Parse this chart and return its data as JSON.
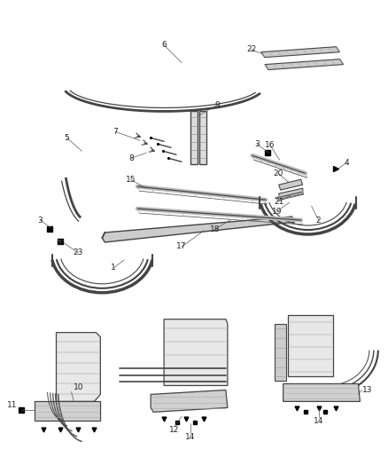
{
  "bg_color": "#ffffff",
  "line_color": "#444444",
  "label_color": "#222222",
  "label_fontsize": 6.5,
  "fig_width": 4.38,
  "fig_height": 5.33,
  "dpi": 100
}
